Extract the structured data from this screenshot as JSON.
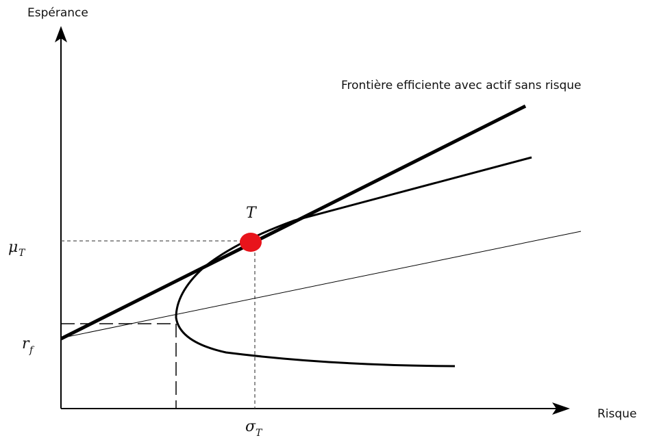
{
  "y_axis_title": "Espérance",
  "x_axis_title": "Risque",
  "frontier_label": "Frontière efficiente avec actif sans risque",
  "tangency_point_label": "T",
  "tangency_point_color": "#e8141b",
  "y_marker_mu_base": "μ",
  "y_marker_mu_sub": "T",
  "y_marker_rf_base": "r",
  "y_marker_rf_sub": "f",
  "x_marker_sigma_base": "σ",
  "x_marker_sigma_sub": "T"
}
